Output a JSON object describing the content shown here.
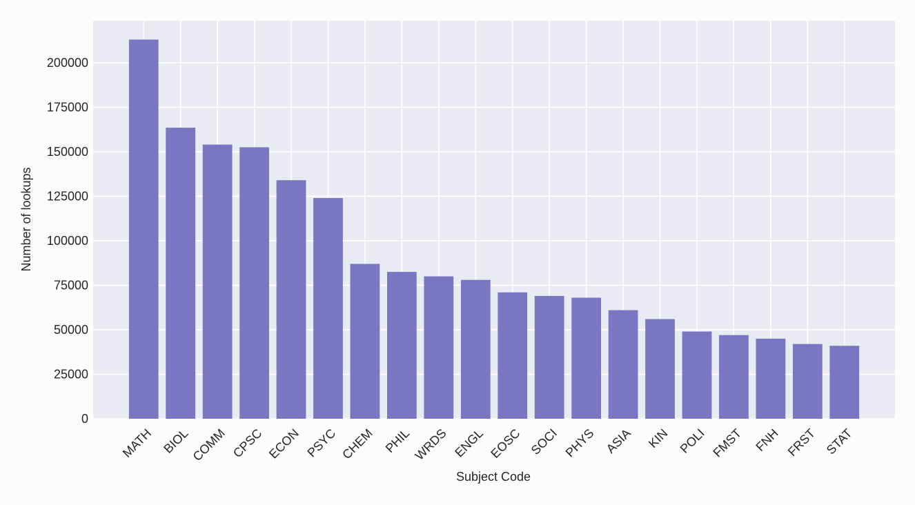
{
  "chart_data": {
    "type": "bar",
    "xlabel": "Subject Code",
    "ylabel": "Number of lookups",
    "categories": [
      "MATH",
      "BIOL",
      "COMM",
      "CPSC",
      "ECON",
      "PSYC",
      "CHEM",
      "PHIL",
      "WRDS",
      "ENGL",
      "EOSC",
      "SOCI",
      "PHYS",
      "ASIA",
      "KIN",
      "POLI",
      "FMST",
      "FNH",
      "FRST",
      "STAT"
    ],
    "values": [
      213000,
      163500,
      154000,
      152500,
      134000,
      124000,
      87000,
      82500,
      80000,
      78000,
      71000,
      69000,
      68000,
      61000,
      56000,
      49000,
      47000,
      45000,
      42000,
      41000
    ],
    "color": "#7a76c2",
    "ylim": [
      0,
      223600
    ],
    "yticks": [
      0,
      25000,
      50000,
      75000,
      100000,
      125000,
      150000,
      175000,
      200000
    ],
    "grid": true
  }
}
